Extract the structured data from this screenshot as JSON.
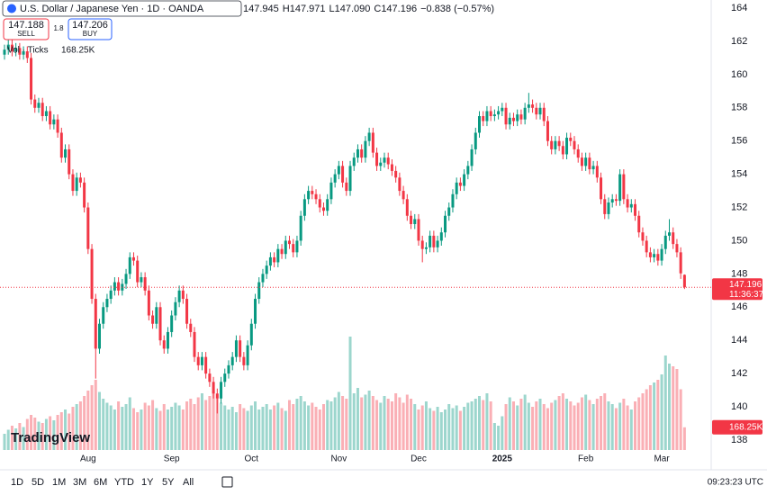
{
  "chart_data": {
    "type": "candlestick",
    "title": "U.S. Dollar / Japanese Yen · 1D · OANDA",
    "ohlc_line": [
      "147.945",
      "H147.971",
      "L147.090",
      "C147.196",
      "−0.838 (−0.57%)"
    ],
    "sell": {
      "price": "147.188",
      "label": "SELL"
    },
    "buy": {
      "price": "147.206",
      "label": "BUY"
    },
    "spread": "1.8",
    "volume_title": "Vol · Ticks",
    "volume_label": "168.25K",
    "last_price_label": "147.196",
    "countdown": "11:36:37",
    "up_color": "#089981",
    "down_color": "#f23645",
    "ylim": [
      137.4,
      164.49
    ],
    "yticks": [
      138,
      140,
      142,
      144,
      146,
      148,
      150,
      152,
      154,
      156,
      158,
      160,
      162,
      164
    ],
    "grid": false,
    "xticks": [
      {
        "value": 22,
        "label": "Aug"
      },
      {
        "value": 44,
        "label": "Sep"
      },
      {
        "value": 65,
        "label": "Oct"
      },
      {
        "value": 88,
        "label": "Nov"
      },
      {
        "value": 109,
        "label": "Dec"
      },
      {
        "value": 131,
        "label": "2025"
      },
      {
        "value": 153,
        "label": "Feb"
      },
      {
        "value": 173,
        "label": "Mar"
      }
    ],
    "candles": [
      [
        161.2,
        161.8,
        160.9,
        161.5
      ],
      [
        161.5,
        162.1,
        161.2,
        161.8
      ],
      [
        161.8,
        162.1,
        161.1,
        161.4
      ],
      [
        161.4,
        161.9,
        161.1,
        161.6
      ],
      [
        161.6,
        161.9,
        160.9,
        161.2
      ],
      [
        161.2,
        161.7,
        160.9,
        161.4
      ],
      [
        161.4,
        161.7,
        160.7,
        161
      ],
      [
        161,
        161.3,
        158.2,
        158.5
      ],
      [
        158.5,
        158.8,
        157.7,
        158
      ],
      [
        158,
        158.6,
        157.7,
        158.3
      ],
      [
        158.3,
        158.6,
        157.2,
        157.5
      ],
      [
        157.5,
        158.1,
        157.2,
        157.8
      ],
      [
        157.8,
        158.1,
        156.7,
        157
      ],
      [
        157,
        157.6,
        156.7,
        157.3
      ],
      [
        157.3,
        157.6,
        156.2,
        156.5
      ],
      [
        156.5,
        156.8,
        154.7,
        155
      ],
      [
        155,
        155.8,
        154.7,
        155.5
      ],
      [
        155.5,
        155.8,
        153.7,
        154
      ],
      [
        154,
        154.3,
        152.7,
        153
      ],
      [
        153,
        154.1,
        152.7,
        153.8
      ],
      [
        153.8,
        154.1,
        153.2,
        153.5
      ],
      [
        153.5,
        153.8,
        151.7,
        152
      ],
      [
        152,
        152.3,
        149.2,
        149.5
      ],
      [
        149.5,
        149.8,
        146.2,
        146.5
      ],
      [
        146.5,
        146.8,
        141.7,
        143.5
      ],
      [
        143.5,
        145.3,
        143.2,
        145
      ],
      [
        145,
        146.3,
        144.7,
        146
      ],
      [
        146,
        146.8,
        145.7,
        146.5
      ],
      [
        146.5,
        147.3,
        146.2,
        147
      ],
      [
        147,
        147.8,
        146.7,
        147.5
      ],
      [
        147.5,
        147.8,
        146.7,
        147
      ],
      [
        147,
        147.7,
        146.7,
        147.4
      ],
      [
        147.4,
        148.3,
        147.1,
        148
      ],
      [
        148,
        149.3,
        147.7,
        149
      ],
      [
        149,
        149.3,
        148.5,
        148.8
      ],
      [
        148.8,
        149.1,
        147.2,
        147.5
      ],
      [
        147.5,
        148.1,
        147.2,
        147.8
      ],
      [
        147.8,
        148.1,
        146.7,
        147
      ],
      [
        147,
        147.3,
        145.2,
        145.5
      ],
      [
        145.5,
        145.8,
        144.7,
        145
      ],
      [
        145,
        146.3,
        144.7,
        146
      ],
      [
        146,
        146.3,
        143.7,
        144
      ],
      [
        144,
        144.3,
        143.2,
        143.5
      ],
      [
        143.5,
        144.8,
        143.2,
        144.5
      ],
      [
        144.5,
        145.8,
        144.2,
        145.5
      ],
      [
        145.5,
        146.6,
        145.2,
        146.3
      ],
      [
        146.3,
        147.3,
        146,
        147
      ],
      [
        147,
        147.3,
        146.2,
        146.5
      ],
      [
        146.5,
        146.8,
        144.7,
        145
      ],
      [
        145,
        145.3,
        144.2,
        144.5
      ],
      [
        144.5,
        144.8,
        142.7,
        143
      ],
      [
        143,
        143.3,
        142.2,
        142.5
      ],
      [
        142.5,
        143.3,
        142.2,
        143
      ],
      [
        143,
        143.3,
        141.7,
        142
      ],
      [
        142,
        142.3,
        141.2,
        141.5
      ],
      [
        141.5,
        141.8,
        140.5,
        140.8
      ],
      [
        140.8,
        141.1,
        139.6,
        140.5
      ],
      [
        140.5,
        141.8,
        140.2,
        141.5
      ],
      [
        141.5,
        142.3,
        141.2,
        142
      ],
      [
        142,
        142.8,
        141.7,
        142.5
      ],
      [
        142.5,
        143.3,
        142.2,
        143
      ],
      [
        143,
        144.3,
        142.7,
        144
      ],
      [
        144,
        144.3,
        142.7,
        143
      ],
      [
        143,
        143.3,
        142.2,
        142.5
      ],
      [
        142.5,
        144,
        142.2,
        143.7
      ],
      [
        143.7,
        145.3,
        143.4,
        145
      ],
      [
        145,
        146.8,
        144.7,
        146.5
      ],
      [
        146.5,
        147.8,
        146.2,
        147.5
      ],
      [
        147.5,
        148.3,
        147.2,
        148
      ],
      [
        148,
        148.8,
        147.7,
        148.5
      ],
      [
        148.5,
        149.3,
        148.2,
        149
      ],
      [
        149,
        149.3,
        148.4,
        148.7
      ],
      [
        148.7,
        149.8,
        148.4,
        149.5
      ],
      [
        149.5,
        149.8,
        148.9,
        149.2
      ],
      [
        149.2,
        150.3,
        148.9,
        150
      ],
      [
        150,
        150.3,
        149.5,
        149.8
      ],
      [
        149.8,
        150.1,
        149,
        149.3
      ],
      [
        149.3,
        150.3,
        149,
        150
      ],
      [
        150,
        151.8,
        149.7,
        151.5
      ],
      [
        151.5,
        152.8,
        151.2,
        152.5
      ],
      [
        152.5,
        153.3,
        152.2,
        153
      ],
      [
        153,
        153.3,
        152.5,
        152.8
      ],
      [
        152.8,
        153.1,
        152.2,
        152.5
      ],
      [
        152.5,
        152.8,
        151.7,
        152
      ],
      [
        152,
        152.3,
        151.5,
        151.8
      ],
      [
        151.8,
        152.8,
        151.5,
        152.5
      ],
      [
        152.5,
        153.8,
        152.2,
        153.5
      ],
      [
        153.5,
        154.3,
        153.2,
        154
      ],
      [
        154,
        154.8,
        153.7,
        154.5
      ],
      [
        154.5,
        154.8,
        153.2,
        153.5
      ],
      [
        153.5,
        153.8,
        152.7,
        153
      ],
      [
        153,
        154.8,
        152.7,
        154.5
      ],
      [
        154.5,
        155.3,
        154.2,
        155
      ],
      [
        155,
        155.8,
        154.7,
        155.5
      ],
      [
        155.5,
        155.8,
        154.7,
        155
      ],
      [
        155,
        156.3,
        154.7,
        156
      ],
      [
        156,
        156.8,
        155.7,
        156.5
      ],
      [
        156.5,
        156.8,
        155,
        155.3
      ],
      [
        155.3,
        155.6,
        154.2,
        154.5
      ],
      [
        154.5,
        155,
        154.2,
        154.7
      ],
      [
        154.7,
        155.3,
        154.4,
        155
      ],
      [
        155,
        155.3,
        154.3,
        154.6
      ],
      [
        154.6,
        154.9,
        153.9,
        154.2
      ],
      [
        154.2,
        154.5,
        153.5,
        153.8
      ],
      [
        153.8,
        154.1,
        152.7,
        153
      ],
      [
        153,
        153.3,
        152.2,
        152.5
      ],
      [
        152.5,
        152.8,
        151.2,
        151.5
      ],
      [
        151.5,
        151.8,
        150.7,
        151
      ],
      [
        151,
        151.6,
        150.7,
        151.3
      ],
      [
        151.3,
        151.6,
        149.7,
        150
      ],
      [
        150,
        150.3,
        148.7,
        149.5
      ],
      [
        149.5,
        149.9,
        149.2,
        149.6
      ],
      [
        149.6,
        150.6,
        149.3,
        150.3
      ],
      [
        150.3,
        150.6,
        149.3,
        149.6
      ],
      [
        149.6,
        150.3,
        149.3,
        150
      ],
      [
        150,
        150.8,
        149.7,
        150.5
      ],
      [
        150.5,
        151.8,
        150.2,
        151.5
      ],
      [
        151.5,
        152.3,
        151.2,
        152
      ],
      [
        152,
        153.1,
        151.7,
        152.8
      ],
      [
        152.8,
        153.8,
        152.5,
        153.5
      ],
      [
        153.5,
        153.8,
        153,
        153.3
      ],
      [
        153.3,
        154.3,
        153,
        154
      ],
      [
        154,
        154.8,
        153.7,
        154.5
      ],
      [
        154.5,
        155.8,
        154.2,
        155.5
      ],
      [
        155.5,
        156.8,
        155.2,
        156.5
      ],
      [
        156.5,
        157.8,
        156.2,
        157.5
      ],
      [
        157.5,
        157.8,
        156.9,
        157.2
      ],
      [
        157.2,
        158.1,
        156.9,
        157.8
      ],
      [
        157.8,
        158.1,
        157.2,
        157.5
      ],
      [
        157.5,
        157.9,
        157.2,
        157.6
      ],
      [
        157.6,
        158.1,
        157.3,
        157.8
      ],
      [
        157.8,
        158.3,
        157.5,
        158
      ],
      [
        158,
        158.3,
        156.7,
        157
      ],
      [
        157,
        157.7,
        156.7,
        157.4
      ],
      [
        157.4,
        157.7,
        156.9,
        157.2
      ],
      [
        157.2,
        157.9,
        156.9,
        157.6
      ],
      [
        157.6,
        157.9,
        157,
        157.3
      ],
      [
        157.3,
        158.3,
        157,
        158
      ],
      [
        158,
        158.9,
        157.7,
        158.2
      ],
      [
        158.2,
        158.5,
        157.7,
        158
      ],
      [
        158,
        158.3,
        157.3,
        157.6
      ],
      [
        157.6,
        158.3,
        157.3,
        158
      ],
      [
        158,
        158.3,
        156.9,
        157.2
      ],
      [
        157.2,
        157.5,
        155.7,
        156
      ],
      [
        156,
        156.3,
        155.2,
        155.5
      ],
      [
        155.5,
        156.3,
        155.2,
        156
      ],
      [
        156,
        156.3,
        155.4,
        155.7
      ],
      [
        155.7,
        156,
        154.9,
        155.2
      ],
      [
        155.2,
        156.5,
        154.9,
        156.2
      ],
      [
        156.2,
        156.5,
        155.7,
        156
      ],
      [
        156,
        156.3,
        155.2,
        155.5
      ],
      [
        155.5,
        155.8,
        154.7,
        155
      ],
      [
        155,
        155.3,
        154.2,
        154.5
      ],
      [
        154.5,
        155.3,
        154.2,
        155
      ],
      [
        155,
        155.3,
        154,
        154.3
      ],
      [
        154.3,
        154.8,
        154,
        154.5
      ],
      [
        154.5,
        154.8,
        153.5,
        153.8
      ],
      [
        153.8,
        154.1,
        152.2,
        152.5
      ],
      [
        152.5,
        152.8,
        151.3,
        151.6
      ],
      [
        151.6,
        152.6,
        151.3,
        152.3
      ],
      [
        152.3,
        152.8,
        152,
        152.5
      ],
      [
        152.5,
        152.8,
        152.1,
        152.4
      ],
      [
        152.4,
        154.3,
        152.1,
        154
      ],
      [
        154,
        154.3,
        152.2,
        152.5
      ],
      [
        152.5,
        152.8,
        151.7,
        152
      ],
      [
        152,
        152.5,
        151.7,
        152.2
      ],
      [
        152.2,
        152.5,
        151.2,
        151.5
      ],
      [
        151.5,
        151.8,
        150.2,
        150.5
      ],
      [
        150.5,
        150.8,
        149.7,
        150
      ],
      [
        150,
        150.3,
        149,
        149.3
      ],
      [
        149.3,
        149.6,
        148.7,
        149
      ],
      [
        149,
        149.5,
        148.7,
        149.2
      ],
      [
        149.2,
        149.5,
        148.5,
        148.8
      ],
      [
        148.8,
        149.8,
        148.5,
        149.5
      ],
      [
        149.5,
        150.6,
        149.2,
        150.3
      ],
      [
        150.3,
        151.3,
        150,
        150.5
      ],
      [
        150.5,
        150.8,
        149.5,
        149.8
      ],
      [
        149.8,
        150.1,
        149,
        149.3
      ],
      [
        149.3,
        149.6,
        147.7,
        148.034
      ],
      [
        147.945,
        147.971,
        147.09,
        147.196
      ]
    ],
    "volumes": [
      120,
      150,
      180,
      160,
      200,
      170,
      230,
      260,
      240,
      210,
      200,
      230,
      250,
      220,
      260,
      280,
      300,
      270,
      320,
      340,
      360,
      400,
      440,
      480,
      520,
      430,
      380,
      350,
      330,
      300,
      360,
      320,
      340,
      390,
      310,
      280,
      300,
      350,
      330,
      370,
      310,
      290,
      340,
      300,
      320,
      350,
      330,
      300,
      360,
      380,
      340,
      390,
      420,
      370,
      400,
      440,
      380,
      350,
      330,
      300,
      320,
      280,
      340,
      310,
      290,
      330,
      360,
      300,
      320,
      340,
      300,
      330,
      350,
      310,
      290,
      370,
      340,
      380,
      400,
      360,
      330,
      350,
      320,
      300,
      340,
      370,
      360,
      390,
      430,
      400,
      380,
      840,
      420,
      460,
      390,
      410,
      440,
      400,
      370,
      350,
      400,
      380,
      360,
      420,
      390,
      350,
      410,
      380,
      340,
      300,
      330,
      360,
      310,
      290,
      320,
      280,
      300,
      340,
      310,
      330,
      290,
      320,
      350,
      360,
      380,
      400,
      370,
      420,
      360,
      200,
      180,
      250,
      340,
      390,
      360,
      330,
      380,
      410,
      350,
      320,
      360,
      380,
      340,
      310,
      350,
      370,
      400,
      420,
      380,
      360,
      330,
      350,
      390,
      410,
      370,
      340,
      380,
      400,
      420,
      360,
      340,
      310,
      350,
      380,
      330,
      300,
      360,
      390,
      420,
      450,
      480,
      500,
      520,
      560,
      700,
      640,
      620,
      600,
      450,
      168.25
    ]
  },
  "ui": {
    "logo": "TradingView",
    "timeframes": [
      "1D",
      "5D",
      "1M",
      "3M",
      "6M",
      "YTD",
      "1Y",
      "5Y",
      "All"
    ],
    "clock": "09:23:23 UTC"
  }
}
